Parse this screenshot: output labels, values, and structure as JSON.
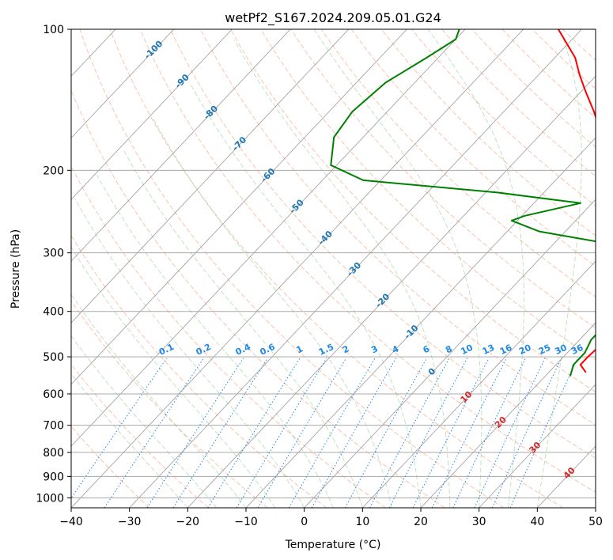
{
  "chart_data": {
    "type": "line",
    "chart_kind": "skew-T log-P diagram",
    "title": "wetPf2_S167.2024.209.05.01.G24",
    "xlabel": "Temperature (°C)",
    "ylabel": "Pressure (hPa)",
    "xlim": [
      -40,
      50
    ],
    "ylim": [
      1050,
      100
    ],
    "y_scale": "log",
    "grid": true,
    "x_ticks": [
      -40,
      -30,
      -20,
      -10,
      0,
      10,
      20,
      30,
      40,
      50
    ],
    "x_tick_labels": [
      "−40",
      "−30",
      "−20",
      "−10",
      "0",
      "10",
      "20",
      "30",
      "40",
      "50"
    ],
    "y_ticks": [
      1000,
      900,
      800,
      700,
      600,
      500,
      400,
      300,
      200,
      100
    ],
    "y_tick_labels": [
      "1000",
      "900",
      "800",
      "700",
      "600",
      "500",
      "400",
      "300",
      "200",
      "100"
    ],
    "skewed_isotherm_labels": [
      {
        "t": -100,
        "text": "-100"
      },
      {
        "t": -90,
        "text": "-90"
      },
      {
        "t": -80,
        "text": "-80"
      },
      {
        "t": -70,
        "text": "-70"
      },
      {
        "t": -60,
        "text": "-60"
      },
      {
        "t": -50,
        "text": "-50"
      },
      {
        "t": -40,
        "text": "-40"
      },
      {
        "t": -30,
        "text": "-30"
      },
      {
        "t": -20,
        "text": "-20"
      },
      {
        "t": -10,
        "text": "-10"
      },
      {
        "t": 0,
        "text": "0"
      },
      {
        "t": 10,
        "text": "10"
      },
      {
        "t": 20,
        "text": "20"
      },
      {
        "t": 30,
        "text": "30"
      },
      {
        "t": 40,
        "text": "40"
      }
    ],
    "mixing_ratio_labels": [
      "0.1",
      "0.2",
      "0.4",
      "0.6",
      "1",
      "1.5",
      "2",
      "3",
      "4",
      "6",
      "8",
      "10",
      "13",
      "16",
      "20",
      "25",
      "30",
      "36"
    ],
    "mixing_ratio_label_pressure": 500,
    "series": [
      {
        "role": "temperature",
        "color": "#ff0000",
        "points": [
          {
            "p": 540,
            "t": 26.4
          },
          {
            "p": 520,
            "t": 24.2
          },
          {
            "p": 500,
            "t": 24.2
          },
          {
            "p": 470,
            "t": 24.5
          },
          {
            "p": 430,
            "t": 24.5
          },
          {
            "p": 400,
            "t": 24.5
          },
          {
            "p": 380,
            "t": 23.5
          },
          {
            "p": 350,
            "t": 22.3
          },
          {
            "p": 330,
            "t": 21.0
          },
          {
            "p": 310,
            "t": 19.0
          },
          {
            "p": 290,
            "t": 18.5
          },
          {
            "p": 270,
            "t": 16.0
          },
          {
            "p": 250,
            "t": 10.5
          },
          {
            "p": 230,
            "t": 5.5
          },
          {
            "p": 200,
            "t": -1.8
          },
          {
            "p": 170,
            "t": -9.0
          },
          {
            "p": 150,
            "t": -14.5
          },
          {
            "p": 135,
            "t": -19.5
          },
          {
            "p": 125,
            "t": -23.0
          },
          {
            "p": 115,
            "t": -26.5
          },
          {
            "p": 100,
            "t": -34.0
          }
        ]
      },
      {
        "role": "dewpoint",
        "color": "#008000",
        "points": [
          {
            "p": 550,
            "t": 24.3
          },
          {
            "p": 520,
            "t": 23.0
          },
          {
            "p": 490,
            "t": 23.0
          },
          {
            "p": 460,
            "t": 22.0
          },
          {
            "p": 430,
            "t": 22.0
          },
          {
            "p": 410,
            "t": 20.5
          },
          {
            "p": 400,
            "t": 22.3
          },
          {
            "p": 380,
            "t": 20.5
          },
          {
            "p": 350,
            "t": 17.5
          },
          {
            "p": 330,
            "t": 15.0
          },
          {
            "p": 310,
            "t": 11.5
          },
          {
            "p": 295,
            "t": 13.0
          },
          {
            "p": 285,
            "t": 8.0
          },
          {
            "p": 270,
            "t": -4.5
          },
          {
            "p": 256,
            "t": -11.0
          },
          {
            "p": 250,
            "t": -9.5
          },
          {
            "p": 235,
            "t": -2.0
          },
          {
            "p": 223,
            "t": -18.0
          },
          {
            "p": 210,
            "t": -43.0
          },
          {
            "p": 195,
            "t": -51.0
          },
          {
            "p": 170,
            "t": -55.0
          },
          {
            "p": 150,
            "t": -56.0
          },
          {
            "p": 130,
            "t": -55.0
          },
          {
            "p": 115,
            "t": -52.0
          },
          {
            "p": 105,
            "t": -50.0
          },
          {
            "p": 100,
            "t": -51.0
          }
        ]
      }
    ]
  }
}
